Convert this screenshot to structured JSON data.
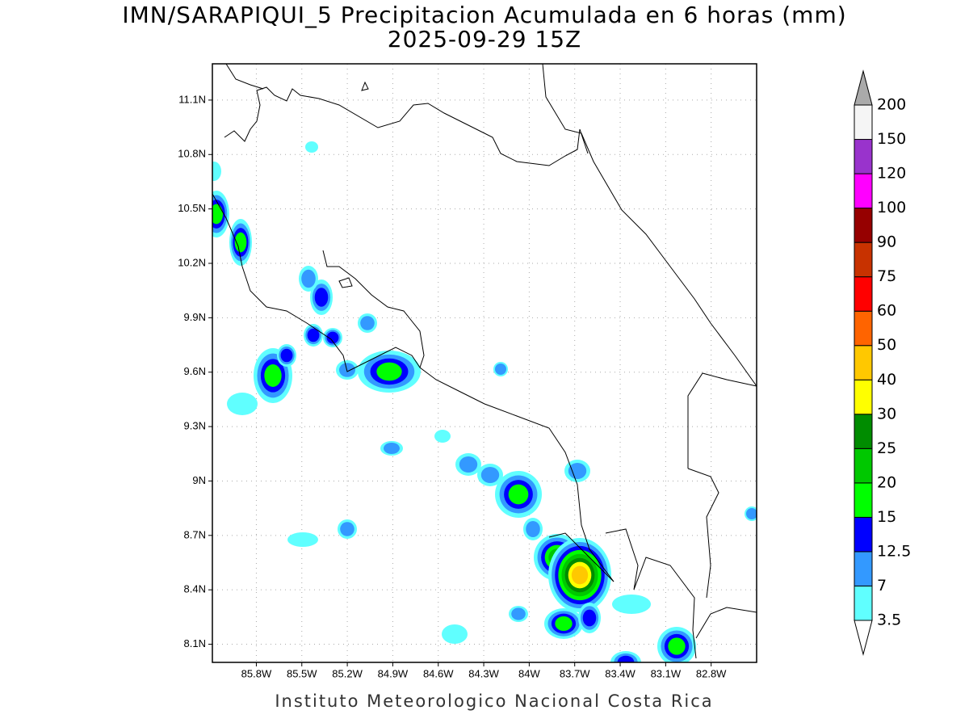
{
  "title": "IMN/SARAPIQUI_5 Precipitacion Acumulada en 6 horas (mm)",
  "subtitle": "2025-09-29 15Z",
  "footer": "Instituto Meteorologico Nacional Costa Rica",
  "map": {
    "xlim": [
      -86.09,
      -82.5
    ],
    "ylim": [
      8.0,
      11.3
    ],
    "grid": true,
    "xticks": [
      {
        "value": -85.8,
        "label": "85.8W"
      },
      {
        "value": -85.5,
        "label": "85.5W"
      },
      {
        "value": -85.2,
        "label": "85.2W"
      },
      {
        "value": -84.9,
        "label": "84.9W"
      },
      {
        "value": -84.6,
        "label": "84.6W"
      },
      {
        "value": -84.3,
        "label": "84.3W"
      },
      {
        "value": -84.0,
        "label": "84W"
      },
      {
        "value": -83.7,
        "label": "83.7W"
      },
      {
        "value": -83.4,
        "label": "83.4W"
      },
      {
        "value": -83.1,
        "label": "83.1W"
      },
      {
        "value": -82.8,
        "label": "82.8W"
      }
    ],
    "yticks": [
      {
        "value": 8.1,
        "label": "8.1N"
      },
      {
        "value": 8.4,
        "label": "8.4N"
      },
      {
        "value": 8.7,
        "label": "8.7N"
      },
      {
        "value": 9.0,
        "label": "9N"
      },
      {
        "value": 9.3,
        "label": "9.3N"
      },
      {
        "value": 9.6,
        "label": "9.6N"
      },
      {
        "value": 9.9,
        "label": "9.9N"
      },
      {
        "value": 10.2,
        "label": "10.2N"
      },
      {
        "value": 10.5,
        "label": "10.5N"
      },
      {
        "value": 10.8,
        "label": "10.8N"
      },
      {
        "value": 11.1,
        "label": "11.1N"
      }
    ]
  },
  "colorbar": {
    "levels": [
      3.5,
      7,
      12.5,
      15,
      20,
      25,
      30,
      40,
      50,
      60,
      75,
      90,
      100,
      120,
      150,
      200
    ],
    "colors": [
      "#ffffff",
      "#60ffff",
      "#3399ff",
      "#0000ff",
      "#00ff00",
      "#00c800",
      "#008c00",
      "#ffff00",
      "#ffc800",
      "#ff6400",
      "#ff0000",
      "#c83200",
      "#960000",
      "#ff00ff",
      "#9933cc",
      "#f5f5f5",
      "#aaaaaa"
    ]
  }
}
